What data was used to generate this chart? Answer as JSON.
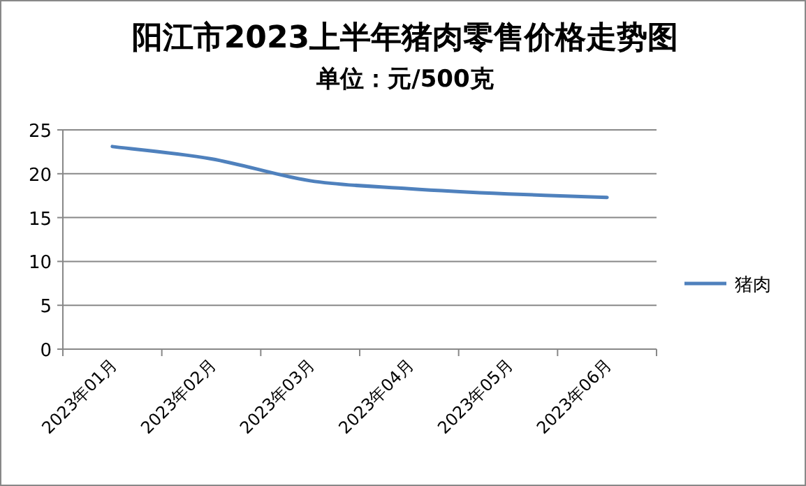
{
  "chart_data": {
    "type": "line",
    "title": "阳江市2023上半年猪肉零售价格走势图",
    "subtitle": "单位：元/500克",
    "categories": [
      "2023年01月",
      "2023年02月",
      "2023年03月",
      "2023年04月",
      "2023年05月",
      "2023年06月"
    ],
    "series": [
      {
        "name": "猪肉",
        "color": "#4f81bd",
        "values": [
          23.1,
          21.7,
          19.2,
          18.3,
          17.7,
          17.3
        ]
      }
    ],
    "ylim": [
      0,
      25
    ],
    "yticks": [
      0,
      5,
      10,
      15,
      20,
      25
    ],
    "grid": "y",
    "legend": "right",
    "marker": "none",
    "line_style": "solid"
  }
}
